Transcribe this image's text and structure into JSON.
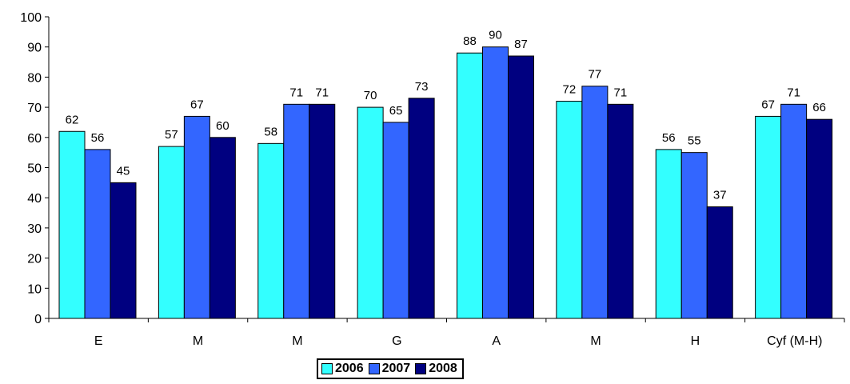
{
  "chart_data": {
    "type": "bar",
    "categories": [
      "E",
      "M",
      "M",
      "G",
      "A",
      "M",
      "H",
      "Cyf (M-H)"
    ],
    "series": [
      {
        "name": "2006",
        "color": "#33FFFF",
        "values": [
          62,
          57,
          58,
          70,
          88,
          72,
          56,
          67
        ]
      },
      {
        "name": "2007",
        "color": "#3366FF",
        "values": [
          56,
          67,
          71,
          65,
          90,
          77,
          55,
          71
        ]
      },
      {
        "name": "2008",
        "color": "#000080",
        "values": [
          45,
          60,
          71,
          73,
          87,
          71,
          37,
          66
        ]
      }
    ],
    "ylim": [
      0,
      100
    ],
    "yticks": [
      0,
      10,
      20,
      30,
      40,
      50,
      60,
      70,
      80,
      90,
      100
    ],
    "grid": false,
    "legend_position": "bottom",
    "data_labels": true
  }
}
